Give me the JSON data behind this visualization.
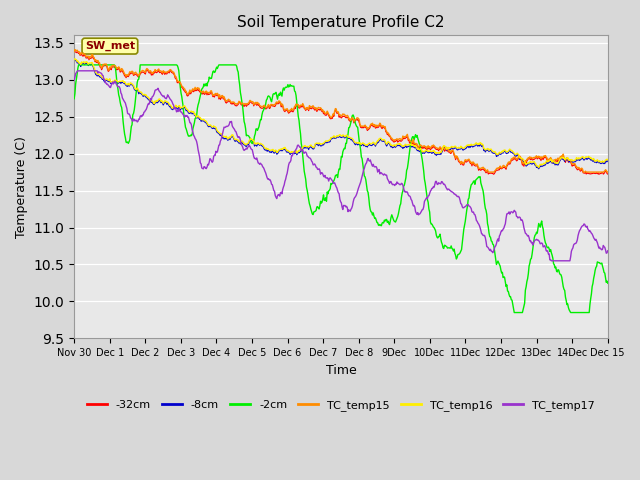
{
  "title": "Soil Temperature Profile C2",
  "xlabel": "Time",
  "ylabel": "Temperature (C)",
  "ylim": [
    9.5,
    13.6
  ],
  "yticks": [
    9.5,
    10.0,
    10.5,
    11.0,
    11.5,
    12.0,
    12.5,
    13.0,
    13.5
  ],
  "background_color": "#d8d8d8",
  "plot_bg_color": "#e8e8e8",
  "colors": {
    "-32cm": "#ff0000",
    "-8cm": "#0000cc",
    "-2cm": "#00ee00",
    "TC_temp15": "#ff8c00",
    "TC_temp16": "#ffee00",
    "TC_temp17": "#9933cc"
  },
  "legend_labels": [
    "-32cm",
    "-8cm",
    "-2cm",
    "TC_temp15",
    "TC_temp16",
    "TC_temp17"
  ],
  "sw_met_label": "SW_met",
  "sw_met_box_color": "#ffffaa",
  "sw_met_text_color": "#8b0000",
  "num_points": 720,
  "end_day": 15.0
}
